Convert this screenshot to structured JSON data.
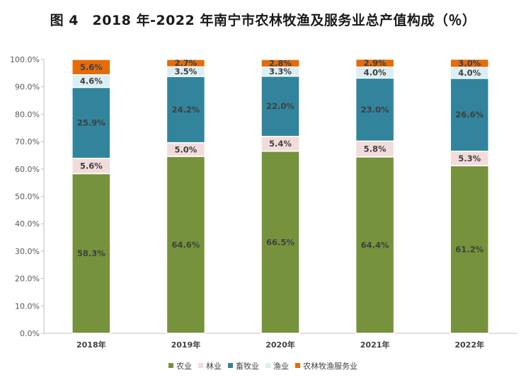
{
  "chart_data": {
    "type": "bar",
    "stacked": true,
    "title": "图 4　2018 年-2022 年南宁市农林牧渔及服务业总产值构成（％）",
    "categories": [
      "2018年",
      "2019年",
      "2020年",
      "2021年",
      "2022年"
    ],
    "series": [
      {
        "name": "农业",
        "color": "#76923c",
        "values": [
          58.3,
          64.6,
          66.5,
          64.4,
          61.2
        ],
        "labels": [
          "58.3%",
          "64.6%",
          "66.5%",
          "64.4%",
          "61.2%"
        ]
      },
      {
        "name": "林业",
        "color": "#f2dcdb",
        "values": [
          5.6,
          5.0,
          5.4,
          5.8,
          5.3
        ],
        "labels": [
          "5.6%",
          "5.0%",
          "5.4%",
          "5.8%",
          "5.3%"
        ]
      },
      {
        "name": "畜牧业",
        "color": "#31849b",
        "values": [
          25.9,
          24.2,
          22.0,
          23.0,
          26.6
        ],
        "labels": [
          "25.9%",
          "24.2%",
          "22.0%",
          "23.0%",
          "26.6%"
        ]
      },
      {
        "name": "渔业",
        "color": "#daeef3",
        "values": [
          4.6,
          3.5,
          3.3,
          4.0,
          4.0
        ],
        "labels": [
          "4.6%",
          "3.5%",
          "3.3%",
          "4.0%",
          "4.0%"
        ]
      },
      {
        "name": "农林牧渔服务业",
        "color": "#e46c0a",
        "values": [
          5.6,
          2.7,
          2.8,
          2.9,
          3.0
        ],
        "labels": [
          "5.6%",
          "2.7%",
          "2.8%",
          "2.9%",
          "3.0%"
        ]
      }
    ],
    "yticks": [
      "0.0%",
      "10.0%",
      "20.0%",
      "30.0%",
      "40.0%",
      "50.0%",
      "60.0%",
      "70.0%",
      "80.0%",
      "90.0%",
      "100.0%"
    ],
    "ylim": [
      0,
      100
    ],
    "xlabel": "",
    "ylabel": "",
    "legend_position": "bottom"
  }
}
